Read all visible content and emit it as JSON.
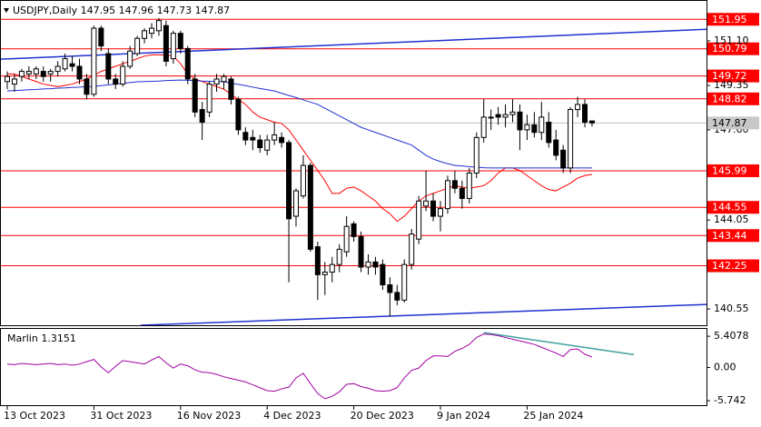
{
  "chart_data": [
    {
      "type": "candlestick",
      "title": "USDJPY,Daily  147.95 147.96 147.73 147.87",
      "categories": [
        "13 Oct 2023",
        null,
        null,
        null,
        null,
        null,
        null,
        null,
        null,
        null,
        null,
        null,
        "31 Oct 2023",
        null,
        null,
        null,
        null,
        null,
        null,
        null,
        null,
        null,
        null,
        null,
        "16 Nov 2023",
        null,
        null,
        null,
        null,
        null,
        null,
        null,
        null,
        null,
        null,
        null,
        "4 Dec 2023",
        null,
        null,
        null,
        null,
        null,
        null,
        null,
        null,
        null,
        null,
        null,
        "20 Dec 2023",
        null,
        null,
        null,
        null,
        null,
        null,
        null,
        null,
        null,
        null,
        null,
        "9 Jan 2024",
        null,
        null,
        null,
        null,
        null,
        null,
        null,
        null,
        null,
        null,
        null,
        "25 Jan 2024",
        null,
        null,
        null,
        null,
        null,
        null,
        null,
        null,
        null
      ],
      "open": [
        149.5,
        149.4,
        149.7,
        149.8,
        149.8,
        149.9,
        149.8,
        149.9,
        150.0,
        150.2,
        150.1,
        149.6,
        149.0,
        151.6,
        150.6,
        149.6,
        149.4,
        150.1,
        150.6,
        151.2,
        151.4,
        151.5,
        151.7,
        150.4,
        151.4,
        150.8,
        149.6,
        148.4,
        148.3,
        149.4,
        149.5,
        149.6,
        148.8,
        147.5,
        147.3,
        147.2,
        146.8,
        147.2,
        147.3,
        147.1,
        144.2,
        145.0,
        146.2,
        143.0,
        141.9,
        142.0,
        142.3,
        142.8,
        143.9,
        143.4,
        142.2,
        142.4,
        142.3,
        141.5,
        141.2,
        140.9,
        142.3,
        143.3,
        144.6,
        144.8,
        144.2,
        144.5,
        145.6,
        145.3,
        144.9,
        145.9,
        147.3,
        148.1,
        148.2,
        148.1,
        148.2,
        148.3,
        147.6,
        147.8,
        147.5,
        147.9,
        147.2,
        146.8,
        146.1,
        148.4,
        148.6,
        147.95
      ],
      "high": [
        149.9,
        149.8,
        150.0,
        150.1,
        150.1,
        150.1,
        150.0,
        150.3,
        150.6,
        150.5,
        150.4,
        149.8,
        151.7,
        151.7,
        150.8,
        149.8,
        150.3,
        150.9,
        151.3,
        151.6,
        151.8,
        152.0,
        151.9,
        151.5,
        151.5,
        150.9,
        149.8,
        148.7,
        149.5,
        149.8,
        149.8,
        149.7,
        148.9,
        147.7,
        147.6,
        147.4,
        147.4,
        147.9,
        147.5,
        147.2,
        145.3,
        146.6,
        146.3,
        143.2,
        142.4,
        142.6,
        143.1,
        144.2,
        144.0,
        143.6,
        142.7,
        142.6,
        142.5,
        141.8,
        141.5,
        142.5,
        143.7,
        145.0,
        146.0,
        145.1,
        144.8,
        145.8,
        146.0,
        145.6,
        146.1,
        147.5,
        148.8,
        148.4,
        148.5,
        148.6,
        148.8,
        148.6,
        148.2,
        148.3,
        148.7,
        148.3,
        147.6,
        147.0,
        148.5,
        148.9,
        148.8,
        147.96
      ],
      "low": [
        149.2,
        149.1,
        149.5,
        149.6,
        149.6,
        149.5,
        149.5,
        149.7,
        149.9,
        149.9,
        149.4,
        148.8,
        148.9,
        150.7,
        149.4,
        149.2,
        149.3,
        150.0,
        150.5,
        151.0,
        151.2,
        151.3,
        150.1,
        150.2,
        150.6,
        149.4,
        148.1,
        147.2,
        148.1,
        149.1,
        149.2,
        148.6,
        147.4,
        147.0,
        146.8,
        146.7,
        146.6,
        147.0,
        146.9,
        141.6,
        143.8,
        144.9,
        142.8,
        140.9,
        141.1,
        141.6,
        142.0,
        142.6,
        143.2,
        142.0,
        141.9,
        141.9,
        141.3,
        140.25,
        140.7,
        140.8,
        142.1,
        143.1,
        144.4,
        144.0,
        143.6,
        144.3,
        145.1,
        144.5,
        144.7,
        145.7,
        147.1,
        147.6,
        147.8,
        147.7,
        147.9,
        146.8,
        147.2,
        147.3,
        147.2,
        146.9,
        146.4,
        145.9,
        145.9,
        148.1,
        147.7,
        147.73
      ],
      "close": [
        149.7,
        149.6,
        149.9,
        149.9,
        150.0,
        149.7,
        149.9,
        150.1,
        150.4,
        150.1,
        149.6,
        149.0,
        151.6,
        150.9,
        149.6,
        149.4,
        150.1,
        150.7,
        151.2,
        151.5,
        151.6,
        151.9,
        150.3,
        151.4,
        150.8,
        149.6,
        148.3,
        147.9,
        149.4,
        149.6,
        149.7,
        148.8,
        147.6,
        147.2,
        147.2,
        146.9,
        147.2,
        147.4,
        147.1,
        144.1,
        145.2,
        146.2,
        142.9,
        141.9,
        142.0,
        142.3,
        142.9,
        143.8,
        143.4,
        142.2,
        142.4,
        142.2,
        141.5,
        141.2,
        140.9,
        142.3,
        143.5,
        144.8,
        144.8,
        144.2,
        144.5,
        145.6,
        145.3,
        144.9,
        145.9,
        147.3,
        148.1,
        148.1,
        148.1,
        148.2,
        148.3,
        147.6,
        147.8,
        147.5,
        148.1,
        147.1,
        146.6,
        146.1,
        148.4,
        148.6,
        147.9,
        147.87
      ],
      "up_color": "#ffffff",
      "down_color": "#000000",
      "series": [
        {
          "color": "#ff0000",
          "values": [
            149.8,
            149.8,
            149.7,
            149.6,
            149.5,
            149.4,
            149.35,
            149.3,
            149.35,
            149.4,
            149.5,
            149.6,
            149.75,
            149.9,
            150.0,
            150.1,
            150.2,
            150.3,
            150.4,
            150.5,
            150.55,
            150.55,
            150.55,
            150.5,
            150.2,
            149.8,
            149.6,
            149.5,
            149.4,
            149.3,
            149.2,
            149.0,
            148.8,
            148.6,
            148.3,
            148.1,
            148.0,
            147.9,
            147.85,
            147.6,
            147.2,
            146.8,
            146.4,
            146.0,
            145.6,
            145.1,
            145.1,
            145.3,
            145.35,
            145.2,
            145.0,
            144.8,
            144.5,
            144.3,
            144.0,
            144.2,
            144.5,
            144.8,
            145.0,
            145.1,
            145.2,
            145.3,
            145.4,
            145.35,
            145.3,
            145.35,
            145.4,
            145.6,
            145.9,
            146.1,
            146.1,
            146.0,
            145.8,
            145.6,
            145.4,
            145.25,
            145.2,
            145.35,
            145.5,
            145.7,
            145.8,
            145.85
          ]
        },
        {
          "color": "#2030d0",
          "values": [
            149.13,
            149.15,
            149.16,
            149.18,
            149.19,
            149.21,
            149.22,
            149.24,
            149.25,
            149.27,
            149.28,
            149.3,
            149.31,
            149.34,
            149.37,
            149.4,
            149.43,
            149.46,
            149.49,
            149.5,
            149.51,
            149.52,
            149.54,
            149.55,
            149.56,
            149.55,
            149.54,
            149.52,
            149.51,
            149.5,
            149.49,
            149.44,
            149.39,
            149.34,
            149.28,
            149.23,
            149.18,
            149.13,
            149.04,
            148.95,
            148.87,
            148.78,
            148.69,
            148.6,
            148.45,
            148.3,
            148.15,
            148.0,
            147.85,
            147.7,
            147.6,
            147.5,
            147.4,
            147.3,
            147.2,
            147.1,
            147.0,
            146.8,
            146.6,
            146.45,
            146.35,
            146.27,
            146.2,
            146.18,
            146.15,
            146.13,
            146.11,
            146.1,
            146.1,
            146.1,
            146.1,
            146.1,
            146.1,
            146.1,
            146.1,
            146.1,
            146.1,
            146.1,
            146.1,
            146.1,
            146.1,
            146.1
          ]
        }
      ],
      "trendlines": [
        {
          "color": "#2030d0",
          "from": [
            -1,
            150.38
          ],
          "to": [
            97,
            151.56
          ]
        },
        {
          "color": "#2030d0",
          "from": [
            18.5,
            139.91
          ],
          "to": [
            97,
            140.73
          ]
        }
      ],
      "levels": [
        151.95,
        150.79,
        149.72,
        148.82,
        145.99,
        144.55,
        143.44,
        142.25
      ],
      "level_color": "#ff0000",
      "last_price": 147.87,
      "ylim": [
        139.91,
        152.71
      ],
      "yticks": [
        {
          "value": 151.1,
          "label": "151.10"
        },
        149.35,
        {
          "value": 147.6,
          "label": "147.60"
        },
        144.05,
        140.55
      ]
    },
    {
      "type": "line",
      "title": "Marlin 1.3151",
      "series": [
        {
          "color": "#a000a0",
          "values": [
            0.6,
            0.5,
            0.7,
            0.6,
            0.5,
            0.6,
            0.7,
            0.5,
            0.6,
            0.4,
            0.6,
            1.0,
            1.4,
            0.1,
            -0.9,
            0.2,
            1.2,
            1.0,
            0.8,
            0.6,
            1.3,
            1.9,
            0.8,
            -0.1,
            0.6,
            0.3,
            -0.4,
            -0.8,
            -0.9,
            -1.2,
            -1.6,
            -1.9,
            -2.2,
            -2.5,
            -3.0,
            -3.5,
            -4.0,
            -4.1,
            -3.7,
            -3.4,
            -1.8,
            -1.0,
            -2.8,
            -4.5,
            -5.4,
            -5.0,
            -4.2,
            -2.9,
            -2.8,
            -3.3,
            -3.6,
            -4.0,
            -4.1,
            -4.0,
            -3.5,
            -1.8,
            -0.5,
            -0.1,
            1.2,
            2.0,
            2.0,
            1.9,
            2.8,
            3.3,
            4.0,
            5.2,
            5.8,
            5.7,
            5.5,
            5.2,
            4.9,
            4.6,
            4.3,
            4.0,
            3.5,
            3.0,
            2.5,
            1.9,
            3.1,
            3.2,
            2.3,
            1.8
          ]
        }
      ],
      "trendlines": [
        {
          "color": "#40a0a0",
          "from": [
            66,
            6.04
          ],
          "to": [
            86.8,
            2.23
          ]
        }
      ],
      "ylim": [
        -6.68,
        6.84
      ],
      "yticks": [
        5.4078,
        {
          "value": 0,
          "label": "0.00"
        },
        -5.742
      ]
    }
  ]
}
